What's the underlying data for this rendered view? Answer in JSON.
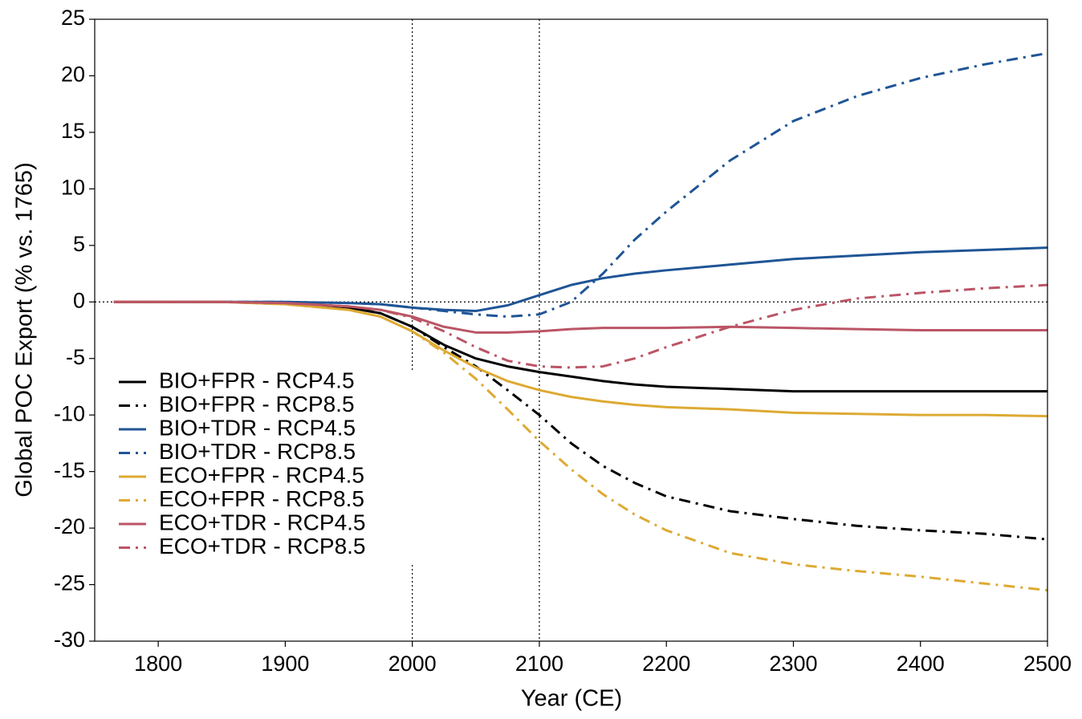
{
  "chart_data": {
    "type": "line",
    "xlabel": "Year (CE)",
    "ylabel": "Global POC Export (% vs. 1765)",
    "x": [
      1765,
      1800,
      1850,
      1900,
      1950,
      1975,
      2000,
      2025,
      2050,
      2075,
      2100,
      2125,
      2150,
      2175,
      2200,
      2250,
      2300,
      2350,
      2400,
      2450,
      2500
    ],
    "xlim": [
      1750,
      2500
    ],
    "xticks": [
      1800,
      1900,
      2000,
      2100,
      2200,
      2300,
      2400,
      2500
    ],
    "ylim": [
      -30,
      25
    ],
    "yticks": [
      -30,
      -25,
      -20,
      -15,
      -10,
      -5,
      0,
      5,
      10,
      15,
      20,
      25
    ],
    "reference_x": [
      2000,
      2100
    ],
    "reference_y": [
      0
    ],
    "legend": "lower left",
    "series": [
      {
        "name": "BIO+FPR - RCP4.5",
        "color": "#000000",
        "style": "solid",
        "values": [
          0,
          0,
          0,
          -0.1,
          -0.5,
          -1,
          -2.2,
          -3.8,
          -5,
          -5.7,
          -6.2,
          -6.6,
          -7,
          -7.3,
          -7.5,
          -7.7,
          -7.9,
          -7.9,
          -7.9,
          -7.9,
          -7.9
        ]
      },
      {
        "name": "BIO+FPR - RCP8.5",
        "color": "#000000",
        "style": "dashdot",
        "values": [
          0,
          0,
          0,
          -0.1,
          -0.5,
          -1,
          -2.2,
          -4,
          -5.7,
          -7.8,
          -10,
          -12.5,
          -14.5,
          -16,
          -17.2,
          -18.5,
          -19.2,
          -19.8,
          -20.2,
          -20.5,
          -21
        ]
      },
      {
        "name": "BIO+TDR - RCP4.5",
        "color": "#1f5596",
        "style": "solid",
        "values": [
          0,
          0,
          0,
          0,
          -0.1,
          -0.2,
          -0.5,
          -0.7,
          -0.8,
          -0.3,
          0.6,
          1.5,
          2.1,
          2.5,
          2.8,
          3.3,
          3.8,
          4.1,
          4.4,
          4.6,
          4.8
        ]
      },
      {
        "name": "BIO+TDR - RCP8.5",
        "color": "#1f5596",
        "style": "dashdot",
        "values": [
          0,
          0,
          0,
          0,
          -0.1,
          -0.2,
          -0.5,
          -0.8,
          -1.1,
          -1.3,
          -1.1,
          0,
          2.5,
          5.5,
          8,
          12.5,
          16,
          18.2,
          19.8,
          21,
          22
        ]
      },
      {
        "name": "ECO+FPR - RCP4.5",
        "color": "#ddaa33",
        "style": "solid",
        "values": [
          0,
          0,
          0,
          -0.2,
          -0.7,
          -1.3,
          -2.6,
          -4.3,
          -5.8,
          -7,
          -7.8,
          -8.4,
          -8.8,
          -9.1,
          -9.3,
          -9.5,
          -9.8,
          -9.9,
          -10,
          -10,
          -10.1
        ]
      },
      {
        "name": "ECO+FPR - RCP8.5",
        "color": "#ddaa33",
        "style": "dashdot",
        "values": [
          0,
          0,
          0,
          -0.2,
          -0.7,
          -1.3,
          -2.6,
          -4.5,
          -6.8,
          -9.5,
          -12.3,
          -14.8,
          -17,
          -18.8,
          -20.2,
          -22.2,
          -23.2,
          -23.8,
          -24.3,
          -24.9,
          -25.5
        ]
      },
      {
        "name": "ECO+TDR - RCP4.5",
        "color": "#bb5566",
        "style": "solid",
        "values": [
          0,
          0,
          0,
          -0.1,
          -0.4,
          -0.7,
          -1.3,
          -2.2,
          -2.7,
          -2.7,
          -2.6,
          -2.4,
          -2.3,
          -2.3,
          -2.3,
          -2.2,
          -2.3,
          -2.4,
          -2.5,
          -2.5,
          -2.5
        ]
      },
      {
        "name": "ECO+TDR - RCP8.5",
        "color": "#bb5566",
        "style": "dashdot",
        "values": [
          0,
          0,
          0,
          -0.1,
          -0.4,
          -0.7,
          -1.4,
          -2.6,
          -4,
          -5.2,
          -5.7,
          -5.8,
          -5.7,
          -5,
          -4,
          -2.2,
          -0.7,
          0.3,
          0.8,
          1.2,
          1.5
        ]
      }
    ]
  }
}
